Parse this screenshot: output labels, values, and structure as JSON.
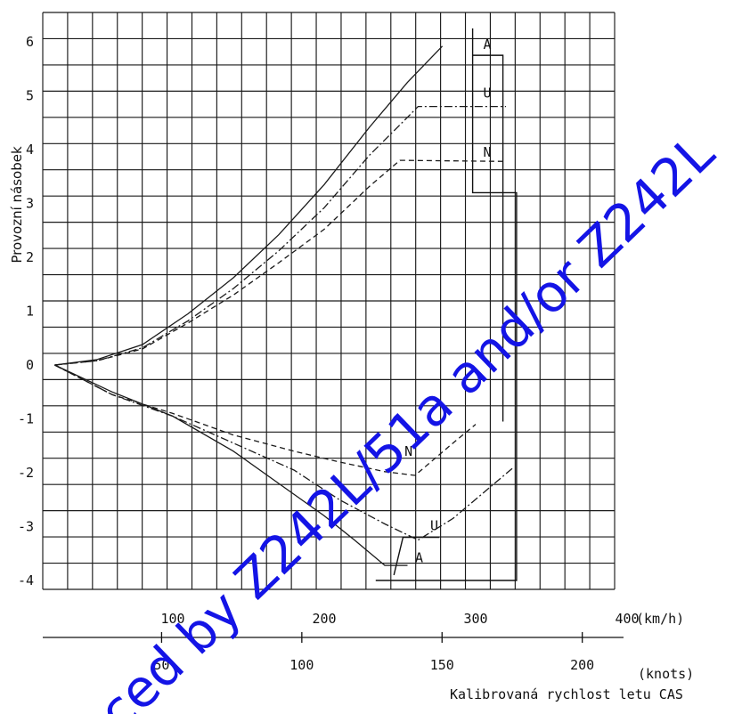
{
  "chart_data": {
    "type": "line",
    "ylabel": "Provozní násobek",
    "ylim": [
      -4,
      6
    ],
    "yticks": [
      6,
      5,
      4,
      3,
      2,
      1,
      0,
      -1,
      -2,
      -3,
      -4
    ],
    "x_primary": {
      "unit_label": "(km/h)",
      "xlim": [
        0,
        430
      ],
      "ticks": [
        100,
        200,
        300,
        400
      ]
    },
    "x_secondary": {
      "unit_label": "(knots)",
      "ticks": [
        50,
        100,
        150,
        200
      ]
    },
    "xlabel": "Kalibrovaná rychlost letu CAS",
    "grid": true,
    "series": [
      {
        "name": "A",
        "style": "solid",
        "x": [
          22,
          50,
          80,
          110,
          140,
          170,
          200,
          230,
          255,
          278
        ],
        "y": [
          0,
          0.1,
          0.38,
          0.95,
          1.62,
          2.42,
          3.35,
          4.42,
          5.25,
          5.92
        ]
      },
      {
        "name": "U",
        "style": "dashdot",
        "x": [
          22,
          50,
          80,
          110,
          140,
          170,
          200,
          230,
          255,
          262,
          320
        ],
        "y": [
          0,
          0.08,
          0.32,
          0.82,
          1.42,
          2.12,
          2.92,
          3.9,
          4.6,
          4.8,
          4.8
        ]
      },
      {
        "name": "N",
        "style": "dashed",
        "x": [
          22,
          50,
          80,
          110,
          140,
          170,
          200,
          230,
          250,
          320
        ],
        "y": [
          0,
          0.08,
          0.3,
          0.78,
          1.3,
          1.9,
          2.52,
          3.32,
          3.8,
          3.78
        ]
      },
      {
        "name": "A",
        "style": "solid",
        "x": [
          22,
          60,
          100,
          140,
          170,
          200,
          220,
          240,
          255
        ],
        "y": [
          0,
          -0.5,
          -0.95,
          -1.6,
          -2.2,
          -2.8,
          -3.25,
          -3.72,
          -3.72
        ]
      },
      {
        "name": "U",
        "style": "dashdot",
        "x": [
          22,
          60,
          100,
          140,
          180,
          210,
          240,
          262,
          285,
          325
        ],
        "y": [
          0,
          -0.55,
          -0.95,
          -1.45,
          -1.95,
          -2.5,
          -2.95,
          -3.25,
          -2.85,
          -1.9
        ]
      },
      {
        "name": "N",
        "style": "dashed",
        "x": [
          22,
          60,
          100,
          140,
          180,
          210,
          240,
          260,
          285,
          300
        ],
        "y": [
          0,
          -0.55,
          -0.9,
          -1.3,
          -1.6,
          -1.8,
          -1.98,
          -2.05,
          -1.45,
          -1.1
        ]
      }
    ],
    "series_labels": [
      {
        "text": "A",
        "x": 305,
        "y": 5.95
      },
      {
        "text": "U",
        "x": 305,
        "y": 5.05
      },
      {
        "text": "N",
        "x": 305,
        "y": 3.95
      },
      {
        "text": "N",
        "x": 253,
        "y": -1.6
      },
      {
        "text": "U",
        "x": 270,
        "y": -2.98
      },
      {
        "text": "A",
        "x": 260,
        "y": -3.58
      }
    ]
  },
  "watermark": {
    "text": "ced by Z242L/51a and/or Z242L",
    "color": "#1414e6"
  },
  "colors": {
    "ink": "#111111",
    "background": "#ffffff"
  }
}
